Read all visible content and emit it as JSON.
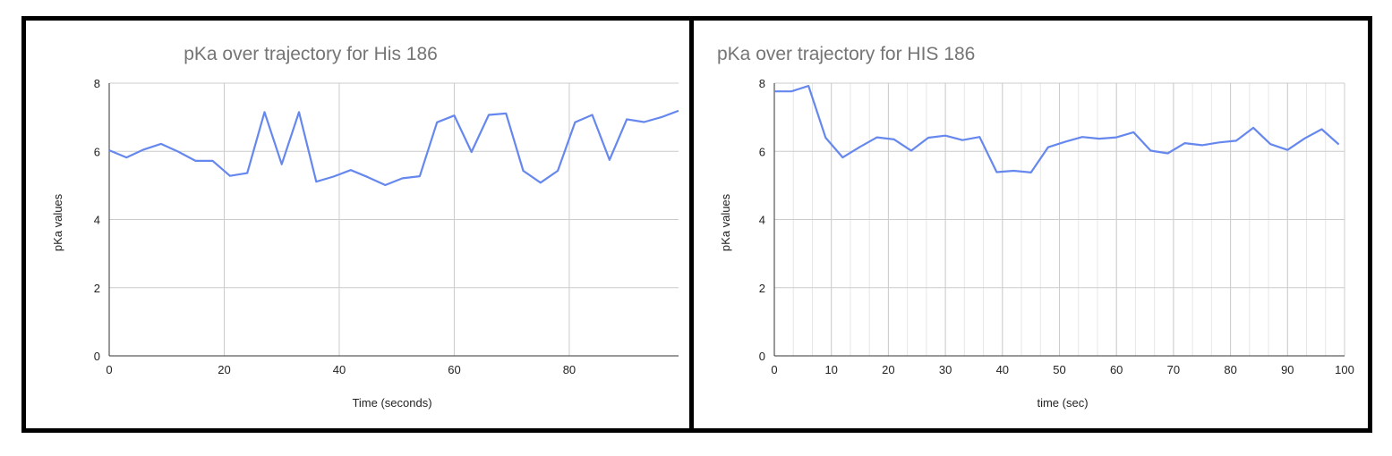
{
  "colors": {
    "line": "#6688ee",
    "grid": "#cccccc",
    "minor_grid": "#e6e6e6",
    "axis": "#333333",
    "title": "#757575"
  },
  "chart_data": [
    {
      "type": "line",
      "title": "pKa over trajectory for His 186",
      "xlabel": "Time (seconds)",
      "ylabel": "pKa values",
      "xlim": [
        0,
        99
      ],
      "ylim": [
        0,
        8
      ],
      "xticks": [
        0,
        20,
        40,
        60,
        80
      ],
      "yticks": [
        0,
        2,
        4,
        6,
        8
      ],
      "grid": true,
      "minor_grid": false,
      "series": [
        {
          "x": [
            0,
            3,
            6,
            9,
            12,
            15,
            18,
            21,
            24,
            27,
            30,
            33,
            36,
            39,
            42,
            45,
            48,
            51,
            54,
            57,
            60,
            63,
            66,
            69,
            72,
            75,
            78,
            81,
            84,
            87,
            90,
            93,
            96,
            99
          ],
          "values": [
            6.03,
            5.82,
            6.05,
            6.22,
            5.99,
            5.72,
            5.72,
            5.28,
            5.36,
            7.15,
            5.62,
            7.15,
            5.11,
            5.26,
            5.45,
            5.24,
            5.01,
            5.21,
            5.27,
            6.85,
            7.05,
            5.98,
            7.07,
            7.11,
            5.43,
            5.08,
            5.43,
            6.85,
            7.07,
            5.75,
            6.94,
            6.86,
            7.0,
            7.19
          ]
        }
      ]
    },
    {
      "type": "line",
      "title": "pKa over trajectory for HIS 186",
      "xlabel": "time (sec)",
      "ylabel": "pKa values",
      "xlim": [
        0,
        100
      ],
      "ylim": [
        0,
        8
      ],
      "xticks": [
        0,
        10,
        20,
        30,
        40,
        50,
        60,
        70,
        80,
        90,
        100
      ],
      "yticks": [
        0,
        2,
        4,
        6,
        8
      ],
      "grid": true,
      "minor_grid": true,
      "series": [
        {
          "x": [
            0,
            3,
            6,
            9,
            12,
            15,
            18,
            21,
            24,
            27,
            30,
            33,
            36,
            39,
            42,
            45,
            48,
            51,
            54,
            57,
            60,
            63,
            66,
            69,
            72,
            75,
            78,
            81,
            84,
            87,
            90,
            93,
            96,
            99
          ],
          "values": [
            7.76,
            7.76,
            7.92,
            6.4,
            5.82,
            6.13,
            6.41,
            6.35,
            6.02,
            6.4,
            6.46,
            6.33,
            6.42,
            5.39,
            5.43,
            5.38,
            6.12,
            6.28,
            6.42,
            6.37,
            6.41,
            6.56,
            6.02,
            5.94,
            6.24,
            6.18,
            6.26,
            6.31,
            6.69,
            6.21,
            6.04,
            6.38,
            6.65,
            6.2
          ]
        }
      ]
    }
  ]
}
